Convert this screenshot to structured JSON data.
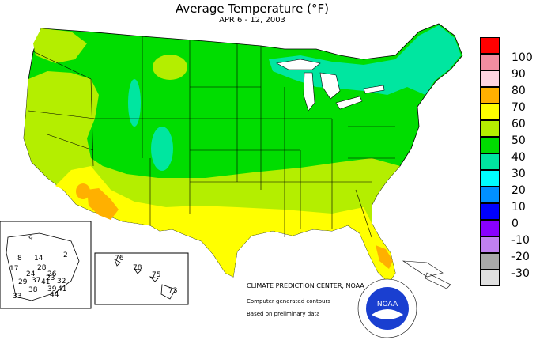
{
  "title": "Average Temperature (°F)",
  "subtitle": "APR 6 - 12, 2003",
  "legend": [
    {
      "label": "100",
      "color": "#ff0000"
    },
    {
      "label": "90",
      "color": "#f28da0"
    },
    {
      "label": "80",
      "color": "#ffd4e0"
    },
    {
      "label": "70",
      "color": "#ffb000"
    },
    {
      "label": "60",
      "color": "#ffff00"
    },
    {
      "label": "50",
      "color": "#b4ee00"
    },
    {
      "label": "40",
      "color": "#00dd00"
    },
    {
      "label": "30",
      "color": "#00e6a0"
    },
    {
      "label": "20",
      "color": "#00ffff"
    },
    {
      "label": "10",
      "color": "#0090ff"
    },
    {
      "label": "0",
      "color": "#0000ff"
    },
    {
      "label": "-10",
      "color": "#8800ff"
    },
    {
      "label": "-20",
      "color": "#c080f0"
    },
    {
      "label": "-30",
      "color": "#a8a8a8"
    },
    {
      "label": "",
      "color": "#e0e0e0"
    }
  ],
  "credits": {
    "center": "CLIMATE PREDICTION CENTER, NOAA",
    "line2": "Computer generated contours",
    "line3": "Based on preliminary data"
  },
  "logo_text": "NOAA",
  "alaska_values": [
    "9",
    "8",
    "14",
    "17",
    "28",
    "2",
    "24",
    "26",
    "23",
    "29",
    "37",
    "41",
    "32",
    "38",
    "39",
    "41",
    "33",
    "44"
  ],
  "hawaii_values": [
    "76",
    "78",
    "75",
    "73"
  ]
}
